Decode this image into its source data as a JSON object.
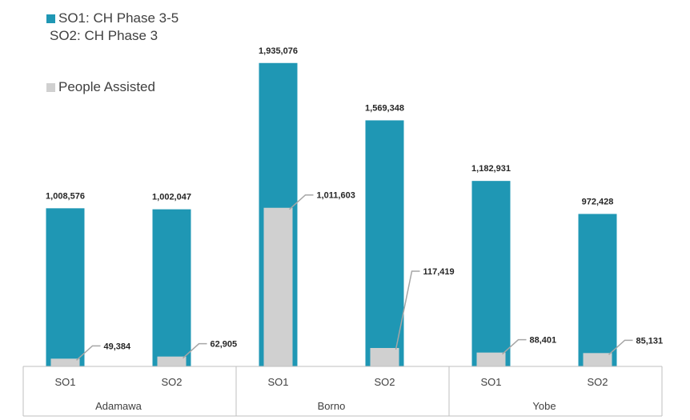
{
  "legend": {
    "series1_label": "SO1: CH Phase 3-5",
    "series1_sub": "SO2: CH Phase 3",
    "series2_label": "People Assisted"
  },
  "colors": {
    "series1": "#1f97b4",
    "series2": "#d0d0d0",
    "axis": "#bfbfbf",
    "leader": "#a6a6a6"
  },
  "chart_data": {
    "type": "bar",
    "groups": [
      {
        "name": "Adamawa",
        "categories": [
          "SO1",
          "SO2"
        ]
      },
      {
        "name": "Borno",
        "categories": [
          "SO1",
          "SO2"
        ]
      },
      {
        "name": "Yobe",
        "categories": [
          "SO1",
          "SO2"
        ]
      }
    ],
    "categories": [
      "SO1",
      "SO2",
      "SO1",
      "SO2",
      "SO1",
      "SO2"
    ],
    "series": [
      {
        "name": "SO1: CH Phase 3-5 / SO2: CH Phase 3",
        "values": [
          1008576,
          1002047,
          1935076,
          1569348,
          1182931,
          972428
        ],
        "labels": [
          "1,008,576",
          "1,002,047",
          "1,935,076",
          "1,569,348",
          "1,182,931",
          "972,428"
        ]
      },
      {
        "name": "People Assisted",
        "values": [
          49384,
          62905,
          1011603,
          117419,
          88401,
          85131
        ],
        "labels": [
          "49,384",
          "62,905",
          "1,011,603",
          "117,419",
          "88,401",
          "85,131"
        ]
      }
    ],
    "ylim": [
      0,
      1990000
    ],
    "grid": false,
    "legend_position": "top-left"
  }
}
